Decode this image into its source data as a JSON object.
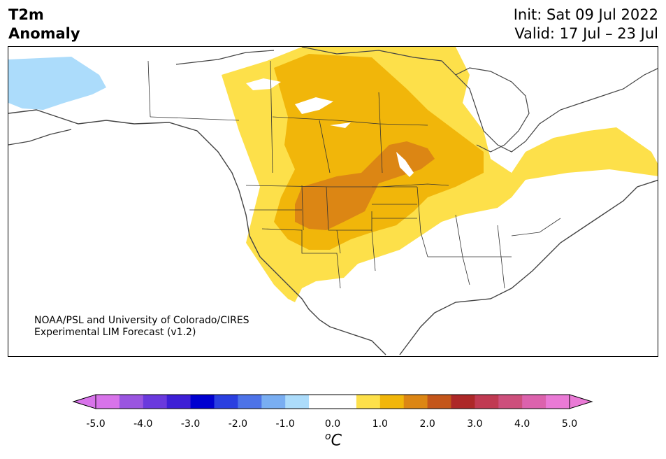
{
  "title": {
    "line1": "T2m",
    "line2": "Anomaly"
  },
  "dates": {
    "init": "Init: Sat 09 Jul 2022",
    "valid": "Valid: 17 Jul – 23 Jul"
  },
  "credit": {
    "line1": "NOAA/PSL and University of Colorado/CIRES",
    "line2": "Experimental LIM Forecast (v1.2)"
  },
  "colorbar": {
    "ticks": [
      "-5.0",
      "-4.0",
      "-3.0",
      "-2.0",
      "-1.0",
      "0.0",
      "1.0",
      "2.0",
      "3.0",
      "4.0",
      "5.0"
    ],
    "unit_base": "C",
    "unit_super": "o",
    "colors": [
      "#d873ea",
      "#9a55e0",
      "#6a39dd",
      "#3d1fd6",
      "#0000d0",
      "#2a3fe0",
      "#4d73e8",
      "#79aef2",
      "#acdcfb",
      "#ffffff",
      "#ffffff",
      "#fde04a",
      "#f1b60a",
      "#dc8614",
      "#c4561a",
      "#ad2828",
      "#c03a52",
      "#cd4f7c",
      "#dc62ad",
      "#ea7ad6"
    ],
    "extend_low": "#d873ea",
    "extend_high": "#ea7ad6"
  },
  "map": {
    "region": "North America",
    "anomaly_colors": {
      "cool1": "#acdcfb",
      "warm1": "#fde04a",
      "warm2": "#f1b60a",
      "warm3": "#dc8614"
    }
  }
}
